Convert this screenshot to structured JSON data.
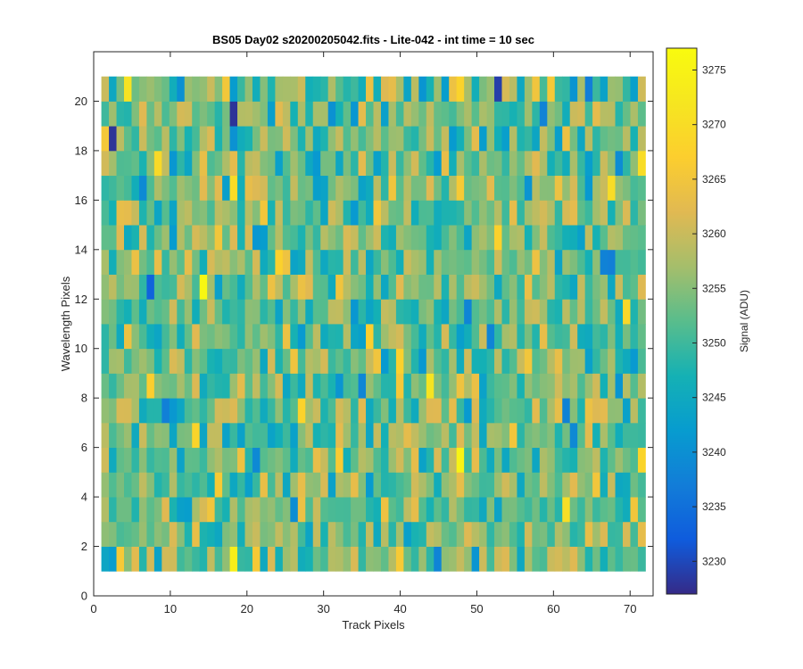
{
  "chart_data": {
    "type": "heatmap",
    "title": "BS05 Day02  s20200205042.fits - Lite-042 - int time = 10 sec",
    "xlabel": "Track Pixels",
    "ylabel": "Wavelength Pixels",
    "colorbar_label": "Signal (ADU)",
    "xlim": [
      0,
      73
    ],
    "ylim": [
      0,
      22
    ],
    "xticks": [
      0,
      10,
      20,
      30,
      40,
      50,
      60,
      70
    ],
    "yticks": [
      0,
      2,
      4,
      6,
      8,
      10,
      12,
      14,
      16,
      18,
      20
    ],
    "grid": false,
    "colormap": "parula",
    "clim": [
      3227,
      3277
    ],
    "colorbar_ticks": [
      3230,
      3235,
      3240,
      3245,
      3250,
      3255,
      3260,
      3265,
      3270,
      3275
    ],
    "x_range": [
      1,
      72
    ],
    "y_range": [
      1,
      21
    ],
    "n_cols": 72,
    "n_rows": 20,
    "values_note": "",
    "highlights": [
      {
        "x": 14.5,
        "y": 12.5,
        "value": 3276
      },
      {
        "x": 47.5,
        "y": 5.5,
        "value": 3275
      },
      {
        "x": 18.5,
        "y": 1.5,
        "value": 3274
      },
      {
        "x": 7.5,
        "y": 12.5,
        "value": 3233
      },
      {
        "x": 2.5,
        "y": 18.5,
        "value": 3228
      },
      {
        "x": 18.5,
        "y": 19.5,
        "value": 3228
      },
      {
        "x": 52.5,
        "y": 20.5,
        "value": 3229
      },
      {
        "x": 71.5,
        "y": 17.5,
        "value": 3270
      },
      {
        "x": 67.5,
        "y": 16.5,
        "value": 3270
      }
    ]
  },
  "colors": {
    "background": "#ffffff",
    "axes": "#262626"
  }
}
